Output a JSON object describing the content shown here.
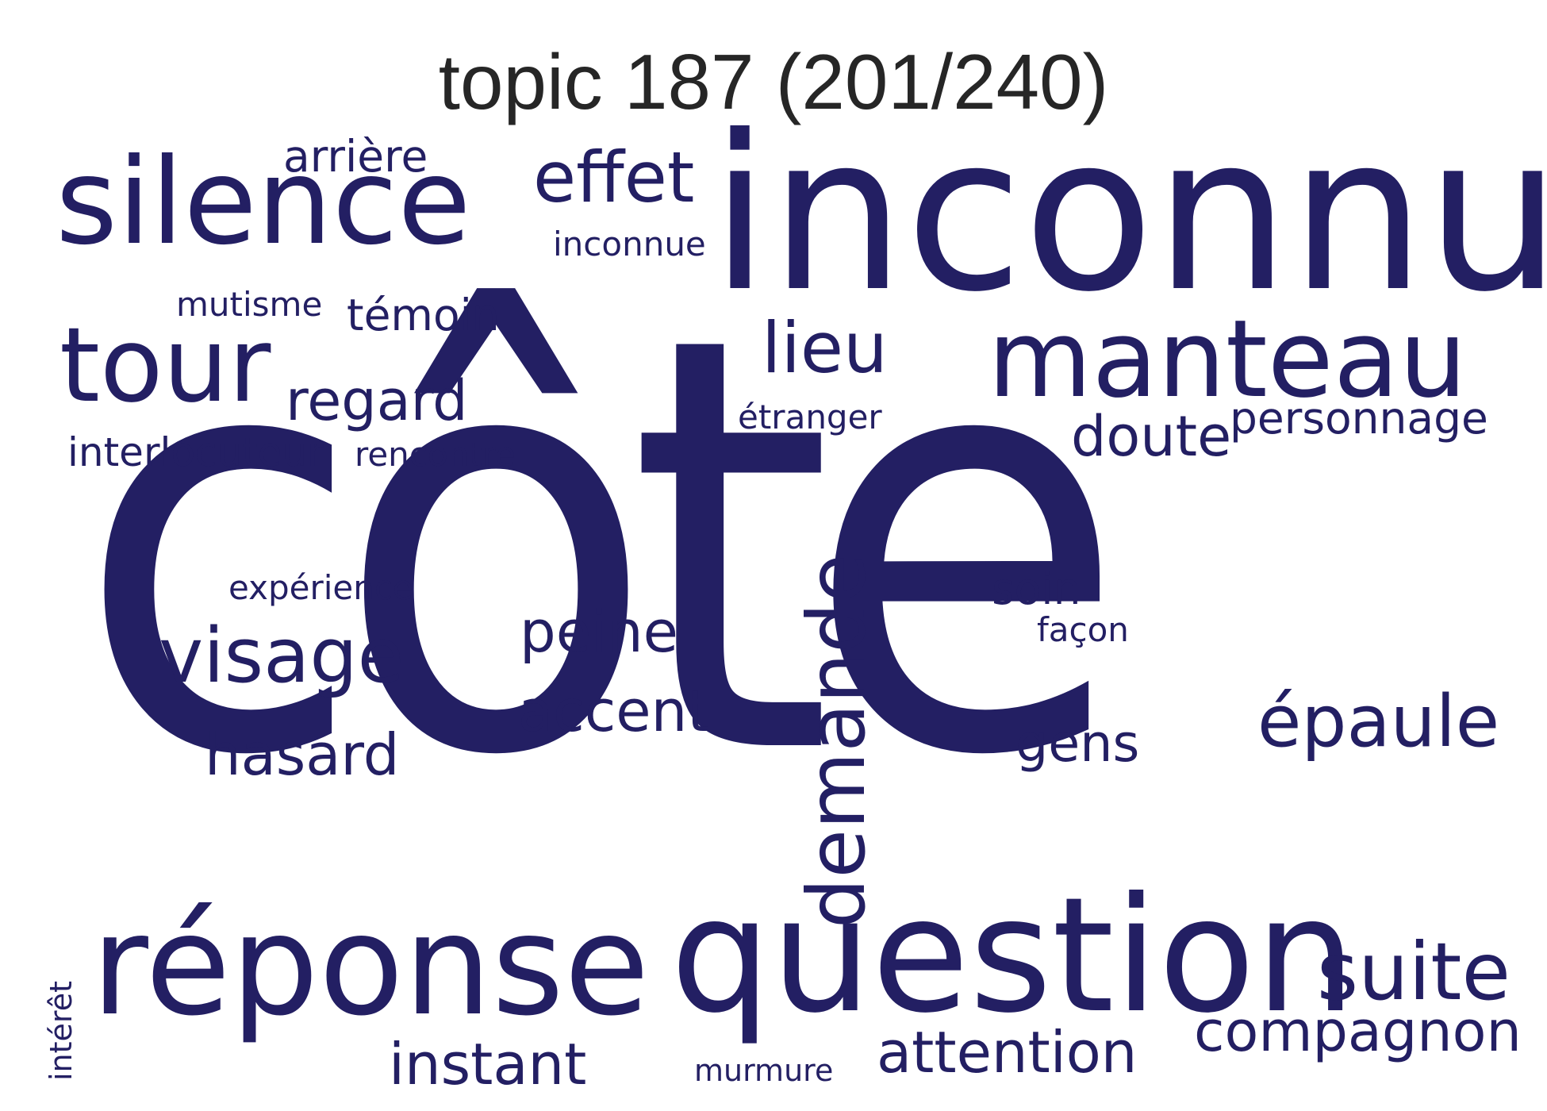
{
  "title": "topic 187 (201/240)",
  "color": "#231f63",
  "words": [
    {
      "id": "cote",
      "text": "côte"
    },
    {
      "id": "inconnu",
      "text": "inconnu"
    },
    {
      "id": "question",
      "text": "question"
    },
    {
      "id": "reponse",
      "text": "réponse"
    },
    {
      "id": "silence",
      "text": "silence"
    },
    {
      "id": "manteau",
      "text": "manteau"
    },
    {
      "id": "tour",
      "text": "tour"
    },
    {
      "id": "demande",
      "text": "demande"
    },
    {
      "id": "suite",
      "text": "suite"
    },
    {
      "id": "visage",
      "text": "visage"
    },
    {
      "id": "epaule",
      "text": "épaule"
    },
    {
      "id": "effet",
      "text": "effet"
    },
    {
      "id": "lieu",
      "text": "lieu"
    },
    {
      "id": "compagnon",
      "text": "compagnon"
    },
    {
      "id": "attention",
      "text": "attention"
    },
    {
      "id": "accent",
      "text": "accent"
    },
    {
      "id": "peine",
      "text": "peine"
    },
    {
      "id": "hasard",
      "text": "hasard"
    },
    {
      "id": "instant",
      "text": "instant"
    },
    {
      "id": "doute",
      "text": "doute"
    },
    {
      "id": "regard",
      "text": "regard"
    },
    {
      "id": "gens",
      "text": "gens"
    },
    {
      "id": "personnage",
      "text": "personnage"
    },
    {
      "id": "arriere",
      "text": "arrière"
    },
    {
      "id": "temoin",
      "text": "témoin"
    },
    {
      "id": "soin",
      "text": "soin"
    },
    {
      "id": "interlocuteur",
      "text": "interlocuteur"
    },
    {
      "id": "rencontre",
      "text": "rencontre"
    },
    {
      "id": "inconnue",
      "text": "inconnue"
    },
    {
      "id": "experience",
      "text": "expérience"
    },
    {
      "id": "etranger",
      "text": "étranger"
    },
    {
      "id": "mutisme",
      "text": "mutisme"
    },
    {
      "id": "facon",
      "text": "façon"
    },
    {
      "id": "interet",
      "text": "intérêt"
    },
    {
      "id": "murmure",
      "text": "murmure"
    }
  ]
}
